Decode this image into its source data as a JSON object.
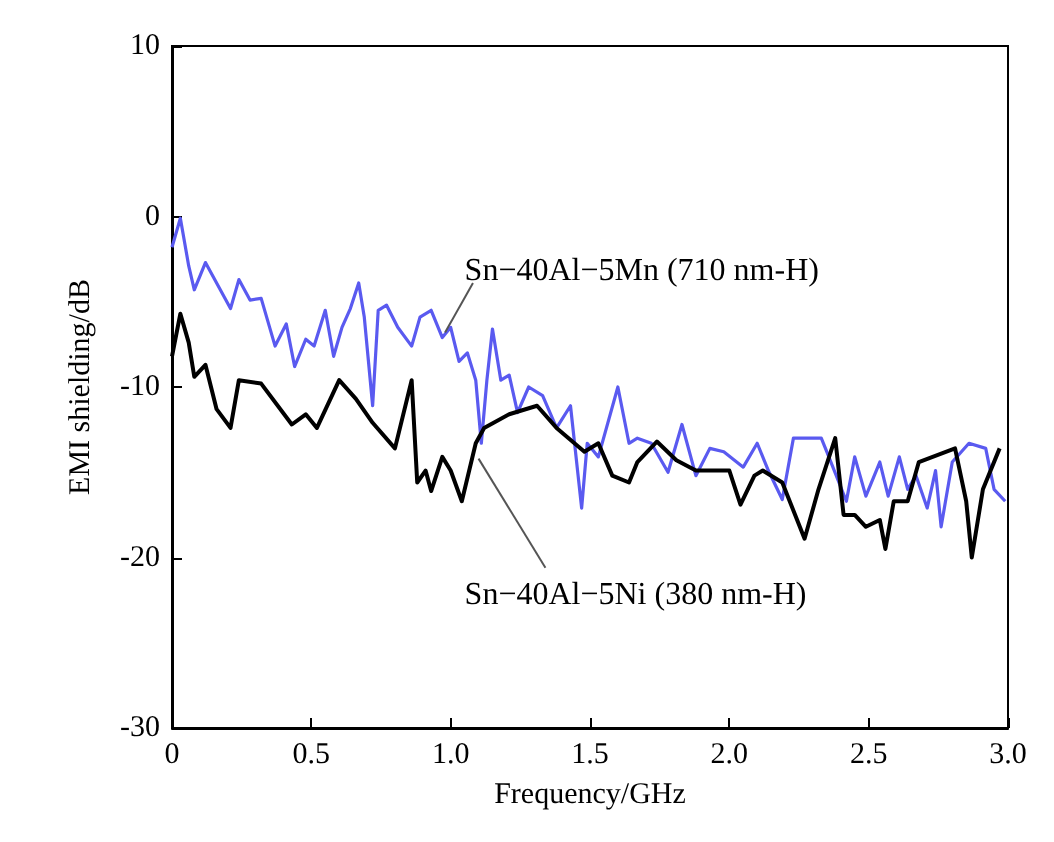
{
  "chart_data": {
    "type": "line",
    "xlabel": "Frequency/GHz",
    "ylabel": "EMI shielding/dB",
    "xlim": [
      0,
      3.0
    ],
    "ylim": [
      -30,
      10
    ],
    "xticks": [
      0,
      0.5,
      {
        "value": 1,
        "label": "1.0"
      },
      1.5,
      {
        "value": 2,
        "label": "2.0"
      },
      2.5,
      {
        "value": 3,
        "label": "3.0"
      }
    ],
    "yticks": [
      -30,
      -20,
      -10,
      0,
      10
    ],
    "grid": false,
    "legend": false,
    "marker": "none",
    "line_style": "solid",
    "series": [
      {
        "name": "Sn−40Al−5Mn (710 nm-H)",
        "color": "#5a5af0",
        "x": [
          0,
          0.03,
          0.06,
          0.08,
          0.12,
          0.21,
          0.24,
          0.28,
          0.32,
          0.37,
          0.41,
          0.44,
          0.48,
          0.51,
          0.55,
          0.58,
          0.61,
          0.64,
          0.67,
          0.69,
          0.72,
          0.74,
          0.77,
          0.81,
          0.86,
          0.89,
          0.93,
          0.97,
          1.0,
          1.03,
          1.06,
          1.09,
          1.11,
          1.13,
          1.15,
          1.18,
          1.21,
          1.24,
          1.28,
          1.33,
          1.38,
          1.43,
          1.47,
          1.49,
          1.53,
          1.6,
          1.64,
          1.67,
          1.72,
          1.78,
          1.83,
          1.88,
          1.93,
          1.98,
          2.05,
          2.1,
          2.14,
          2.19,
          2.23,
          2.33,
          2.35,
          2.42,
          2.45,
          2.49,
          2.54,
          2.57,
          2.61,
          2.64,
          2.67,
          2.71,
          2.74,
          2.76,
          2.8,
          2.86,
          2.92,
          2.95,
          2.99
        ],
        "values": [
          -1.8,
          -0.1,
          -2.9,
          -4.3,
          -2.7,
          -5.4,
          -3.7,
          -4.9,
          -4.8,
          -7.6,
          -6.3,
          -8.8,
          -7.2,
          -7.6,
          -5.5,
          -8.2,
          -6.5,
          -5.4,
          -3.9,
          -5.9,
          -11.1,
          -5.5,
          -5.2,
          -6.5,
          -7.6,
          -5.9,
          -5.5,
          -7.1,
          -6.5,
          -8.5,
          -8.0,
          -9.6,
          -13.3,
          -9.6,
          -6.6,
          -9.6,
          -9.3,
          -11.5,
          -10.0,
          -10.5,
          -12.4,
          -11.1,
          -17.1,
          -13.3,
          -14.1,
          -10.0,
          -13.3,
          -13.0,
          -13.3,
          -15.0,
          -12.2,
          -15.2,
          -13.6,
          -13.8,
          -14.7,
          -13.3,
          -14.9,
          -16.6,
          -13.0,
          -13.0,
          -13.8,
          -16.7,
          -14.1,
          -16.4,
          -14.4,
          -16.4,
          -14.1,
          -16.0,
          -15.2,
          -17.1,
          -14.9,
          -18.2,
          -14.4,
          -13.3,
          -13.6,
          -16.0,
          -16.7
        ]
      },
      {
        "name": "Sn−40Al−5Ni (380 nm-H)",
        "color": "#000000",
        "x": [
          0,
          0.03,
          0.06,
          0.08,
          0.12,
          0.16,
          0.21,
          0.24,
          0.32,
          0.43,
          0.48,
          0.52,
          0.6,
          0.66,
          0.72,
          0.8,
          0.86,
          0.88,
          0.91,
          0.93,
          0.97,
          1.0,
          1.04,
          1.09,
          1.12,
          1.21,
          1.31,
          1.38,
          1.48,
          1.53,
          1.58,
          1.64,
          1.67,
          1.74,
          1.81,
          1.88,
          1.95,
          2.0,
          2.04,
          2.09,
          2.12,
          2.19,
          2.27,
          2.32,
          2.38,
          2.41,
          2.45,
          2.49,
          2.54,
          2.56,
          2.59,
          2.64,
          2.68,
          2.81,
          2.85,
          2.87,
          2.91,
          2.97
        ],
        "values": [
          -8.2,
          -5.7,
          -7.4,
          -9.4,
          -8.7,
          -11.3,
          -12.4,
          -9.6,
          -9.8,
          -12.2,
          -11.6,
          -12.4,
          -9.6,
          -10.7,
          -12.1,
          -13.6,
          -9.6,
          -15.6,
          -14.9,
          -16.1,
          -14.1,
          -14.9,
          -16.7,
          -13.3,
          -12.4,
          -11.6,
          -11.1,
          -12.4,
          -13.8,
          -13.3,
          -15.2,
          -15.6,
          -14.4,
          -13.2,
          -14.3,
          -14.9,
          -14.9,
          -14.9,
          -16.9,
          -15.2,
          -14.9,
          -15.6,
          -18.9,
          -16.0,
          -13.0,
          -17.5,
          -17.5,
          -18.2,
          -17.8,
          -19.5,
          -16.7,
          -16.7,
          -14.4,
          -13.6,
          -16.7,
          -20.0,
          -16.0,
          -13.6
        ]
      }
    ]
  }
}
